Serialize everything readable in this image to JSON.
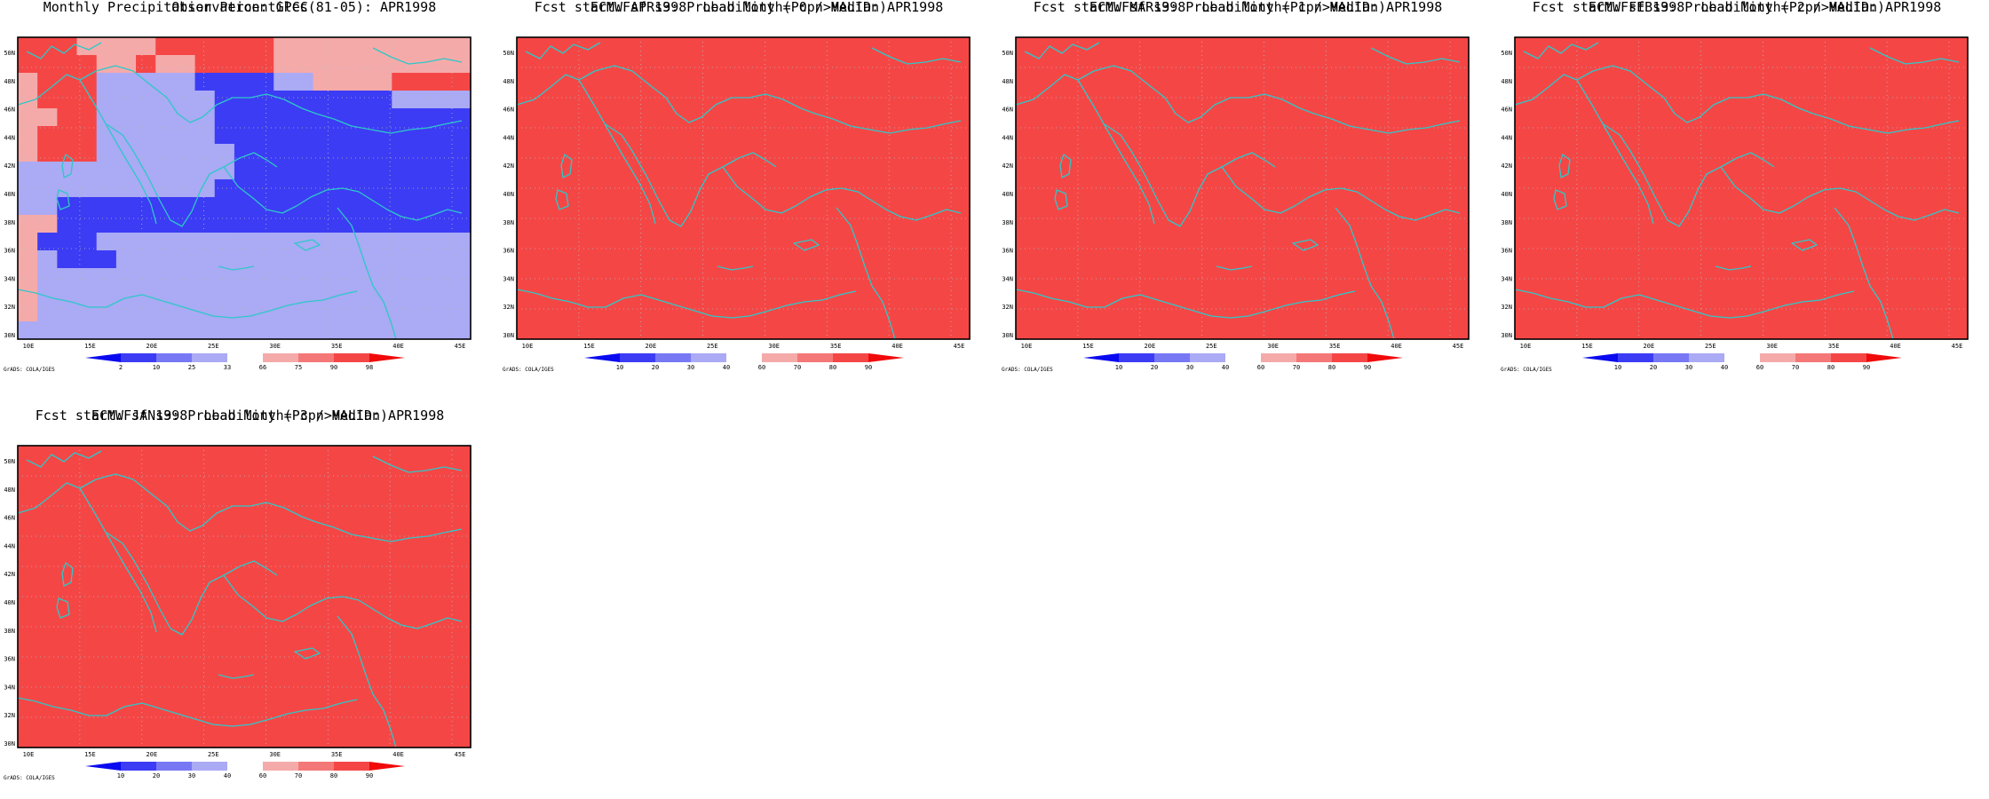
{
  "panels": [
    {
      "id": "obs",
      "title_line1": "Observation: GPCC",
      "title_line2": "Monthly Precipitation Percentiles(81-05): APR1998",
      "colorbar_labels": [
        "2",
        "10",
        "25",
        "33",
        "66",
        "75",
        "90",
        "98"
      ],
      "grid": [
        "RRRHHHHRRRRRRHHHHHHHHHH",
        "RRRRHHRHHRRRRHHHHHHHHHH",
        "HRRRVVVVVBBBBVVHHHHRRRR",
        "HRRRVVVVVVBBBBBBBBBVVVV",
        "HHRRVVVVVVBBBBBBBBBBBBB",
        "HRRRVVVVVVBBBBBBBBBBBBB",
        "HRRRVVVVVVVBBBBBBBBBBBB",
        "VVVVVVVVVVVBBBBBBBBBBBB",
        "VVVVVVVVVVBBBBBBBBBBBBB",
        "VVBBBBBBBBBBBBBBBBBBBBB",
        "HHBBBBBBBBBBBBBBBBBBBBB",
        "HBBBVVVVVVVVVVVVVVVVVVV",
        "HVBBBVVVVVVVVVVVVVVVVVV",
        "HVVVVVVVVVVVVVVVVVVVVVV",
        "HVVVVVVVVVVVVVVVVVVVVVV",
        "HVVVVVVVVVVVVVVVVVVVVVV",
        "VVVVVVVVVVVVVVVVVVVVVVV"
      ]
    },
    {
      "id": "lead0",
      "title_line1": "ECMWFsf s3: Probability (Pcpn>Median)",
      "title_line2": "Fcst start: APR1998  Lead Month= 0 / VALID: APR1998",
      "colorbar_labels": [
        "10",
        "20",
        "30",
        "40",
        "60",
        "70",
        "80",
        "90"
      ],
      "grid": [
        "RRRRRRRRRRRRRRRRRRRRRRR",
        "RRRRRRRRRRRRRRRRRRRRRRR",
        "RRRRRRRRRRRRRRRRRRRRRRR",
        "RRRRRRRRRRRRRRRRRRRRRRR",
        "RRRRRRRRRRRRRRRRRRRRRRR",
        "RRRRRRRRRRRRRRRRRRRRRRR",
        "RRRRRRRRRRRRRRRRRRRRRRR",
        "RRRRRRRRRRRRRRRRRRRRRRR",
        "RRRRRRRRRRRRRRRRRRRRRRR",
        "RRRRRRRRRRRRRRRRRRRRRRR",
        "RRRRRRRRRRRRRRRRRRRRRRR",
        "RRRRRRRRRRRRRRRRRRRRRRR",
        "RRRRRRRRRRRRRRRRRRRRRRR",
        "RRRRRRRRRRRRRRRRRRRRRRR",
        "RRRRRRRRRRRRRRRRRRRRRRR",
        "RRRRRRRRRRRRRRRRRRRRRRR",
        "RRRRRRRRRRRRRRRRRRRRRRR"
      ]
    },
    {
      "id": "lead1",
      "title_line1": "ECMWFsf s3: Probability (Pcpn>Median)",
      "title_line2": "Fcst start: MAR1998  Lead Month= 1 / VALID: APR1998",
      "colorbar_labels": [
        "10",
        "20",
        "30",
        "40",
        "60",
        "70",
        "80",
        "90"
      ],
      "grid": [
        "RRRRRRRRRRRRRRRRRRRRRRR",
        "RRRRRRRRRRRRRRRRRRRRRRR",
        "RRRRRRRRRRRRRRRRRRRRRRR",
        "RRRRRRRRRRRRRRRRRRRRRRR",
        "RRRRRRRRRRRRRRRRRRRRRRR",
        "RRRRRRRRRRRRRRRRRRRRRRR",
        "RRRRRRRRRRRRRRRRRRRRRRR",
        "RRRRRRRRRRRRRRRRRRRRRRR",
        "RRRRRRRRRRRRRRRRRRRRRRR",
        "RRRRRRRRRRRRRRRRRRRRRRR",
        "RRRRRRRRRRRRRRRRRRRRRRR",
        "RRRRRRRRRRRRRRRRRRRRRRR",
        "RRRRRRRRRRRRRRRRRRRRRRR",
        "RRRRRRRRRRRRRRRRRRRRRRR",
        "RRRRRRRRRRRRRRRRRRRRRRR",
        "RRRRRRRRRRRRRRRRRRRRRRR",
        "RRRRRRRRRRRRRRRRRRRRRRR"
      ]
    },
    {
      "id": "lead2",
      "title_line1": "ECMWFsf s3: Probability (Pcpn>Median)",
      "title_line2": "Fcst start: FEB1998  Lead Month= 2 / VALID: APR1998",
      "colorbar_labels": [
        "10",
        "20",
        "30",
        "40",
        "60",
        "70",
        "80",
        "90"
      ],
      "grid": [
        "RRRRRRRRRRRRRRRRRRRRRRR",
        "RRRRRRRRRRRRRRRRRRRRRRR",
        "RRRRRRRRRRRRRRRRRRRRRRR",
        "RRRRRRRRRRRRRRRRRRRRRRR",
        "RRRRRRRRRRRRRRRRRRRRRRR",
        "RRRRRRRRRRRRRRRRRRRRRRR",
        "RRRRRRRRRRRRRRRRRRRRRRR",
        "RRRRRRRRRRRRRRRRRRRRRRR",
        "RRRRRRRRRRRRRRRRRRRRRRR",
        "RRRRRRRRRRRRRRRRRRRRRRR",
        "RRRRRRRRRRRRRRRRRRRRRRR",
        "RRRRRRRRRRRRRRRRRRRRRRR",
        "RRRRRRRRRRRRRRRRRRRRRRR",
        "RRRRRRRRRRRRRRRRRRRRRRR",
        "RRRRRRRRRRRRRRRRRRRRRRR",
        "RRRRRRRRRRRRRRRRRRRRRRR",
        "RRRRRRRRRRRRRRRRRRRRRRR"
      ]
    },
    {
      "id": "lead3",
      "title_line1": "ECMWFsf s3: Probability (Pcpn>Median)",
      "title_line2": "Fcst start: JAN1998  Lead Month= 3 / VALID: APR1998",
      "colorbar_labels": [
        "10",
        "20",
        "30",
        "40",
        "60",
        "70",
        "80",
        "90"
      ],
      "grid": [
        "RRRRRRRRRRRRRRRRRRRRRRR",
        "RRRRRRRRRRRRRRRRRRRRRRR",
        "RRRRRRRRRRRRRRRRRRRRRRR",
        "RRRRRRRRRRRRRRRRRRRRRRR",
        "RRRRRRRRRRRRRRRRRRRRRRR",
        "RRRRRRRRRRRRRRRRRRRRRRR",
        "RRRRRRRRRRRRRRRRRRRRRRR",
        "RRRRRRRRRRRRRRRRRRRRRRR",
        "RRRRRRRRRRRRRRRRRRRRRRR",
        "RRRRRRRRRRRRRRRRRRRRRRR",
        "RRRRRRRRRRRRRRRRRRRRRRR",
        "RRRRRRRRRRRRRRRRRRRRRRR",
        "RRRRRRRRRRRRRRRRRRRRRRR",
        "RRRRRRRRRRRRRRRRRRRRRRR",
        "RRRRRRRRRRRRRRRRRRRRRRR",
        "RRRRRRRRRRRRRRRRRRRRRRR",
        "RRRRRRRRRRRRRRRRRRRRRRR"
      ]
    }
  ],
  "lat_labels": [
    "50N",
    "48N",
    "46N",
    "44N",
    "42N",
    "40N",
    "38N",
    "36N",
    "34N",
    "32N",
    "30N"
  ],
  "lon_labels": [
    "10E",
    "15E",
    "20E",
    "25E",
    "30E",
    "35E",
    "40E",
    "45E"
  ],
  "credit": "GrADS: COLA/IGES",
  "colors": {
    "coast": "#2ec8c8",
    "frame": "#000000",
    "grid_dots": "#b8b8b8",
    "bins": [
      "#0a0af0",
      "#3c3cf5",
      "#7878f5",
      "#aaaaf5",
      "#ffffff",
      "#f5aaaa",
      "#f57878",
      "#f54646",
      "#f00a0a"
    ],
    "cells": {
      "B": "#3c3cf5",
      "V": "#aaaaf5",
      "H": "#f5aaaa",
      "R": "#f54646",
      "W": "#ffffff"
    }
  }
}
